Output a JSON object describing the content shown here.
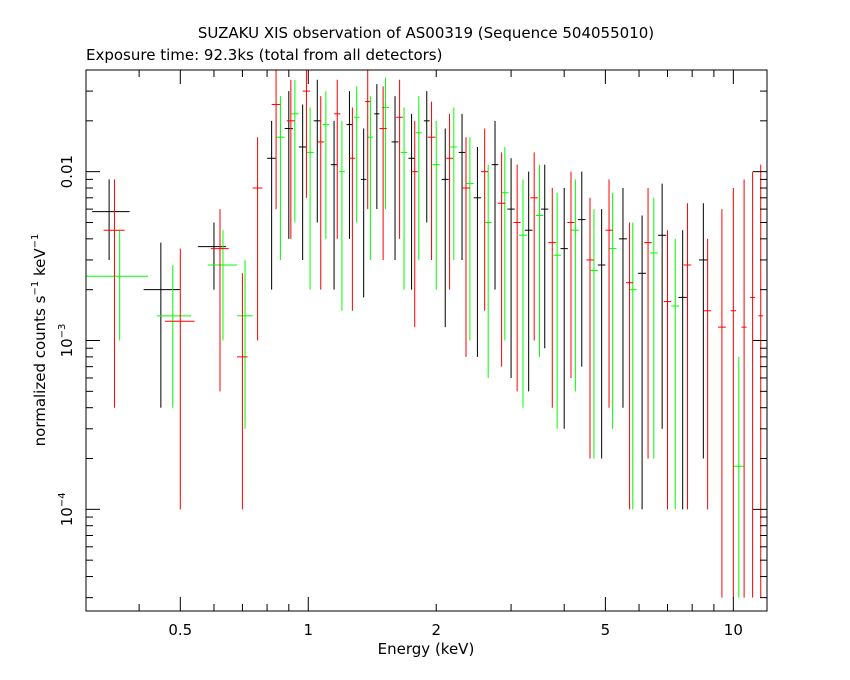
{
  "chart_data": {
    "type": "scatter",
    "title": "SUZAKU XIS observation of AS00319 (Sequence 504055010)",
    "subtitle": "Exposure time: 92.3ks (total from all detectors)",
    "xlabel": "Energy (keV)",
    "ylabel_base": "normalized counts s",
    "ylabel_exp1": "−1",
    "ylabel_mid": " keV",
    "ylabel_exp2": "−1",
    "x_scale": "log",
    "y_scale": "log",
    "xlim": [
      0.3,
      12
    ],
    "ylim": [
      2.5e-05,
      0.04
    ],
    "grid": false,
    "x_ticks": [
      {
        "value": 0.5,
        "label": "0.5"
      },
      {
        "value": 1,
        "label": "1"
      },
      {
        "value": 2,
        "label": "2"
      },
      {
        "value": 5,
        "label": "5"
      },
      {
        "value": 10,
        "label": "10"
      }
    ],
    "y_ticks": [
      {
        "value": 0.01,
        "label": "0.01",
        "sup": ""
      },
      {
        "value": 0.001,
        "label": "10",
        "sup": "−3"
      },
      {
        "value": 0.0001,
        "label": "10",
        "sup": "−4"
      }
    ],
    "series": [
      {
        "color": "#000000",
        "points": [
          {
            "x": 0.34,
            "y": 0.0058,
            "xlo": 0.31,
            "xhi": 0.38,
            "ylo": 0.003,
            "yhi": 0.009
          },
          {
            "x": 0.45,
            "y": 0.002,
            "xlo": 0.41,
            "xhi": 0.5,
            "ylo": 0.0004,
            "yhi": 0.0038
          },
          {
            "x": 0.6,
            "y": 0.0036,
            "xlo": 0.55,
            "xhi": 0.64,
            "ylo": 0.002,
            "yhi": 0.005
          },
          {
            "x": 0.82,
            "y": 0.012,
            "xlo": 0.8,
            "xhi": 0.84,
            "ylo": 0.002,
            "yhi": 0.02
          },
          {
            "x": 0.9,
            "y": 0.018,
            "xlo": 0.88,
            "xhi": 0.92,
            "ylo": 0.004,
            "yhi": 0.03
          },
          {
            "x": 0.97,
            "y": 0.014,
            "xlo": 0.95,
            "xhi": 0.99,
            "ylo": 0.003,
            "yhi": 0.025
          },
          {
            "x": 1.05,
            "y": 0.02,
            "xlo": 1.03,
            "xhi": 1.07,
            "ylo": 0.005,
            "yhi": 0.035
          },
          {
            "x": 1.15,
            "y": 0.011,
            "xlo": 1.13,
            "xhi": 1.17,
            "ylo": 0.002,
            "yhi": 0.02
          },
          {
            "x": 1.25,
            "y": 0.019,
            "xlo": 1.23,
            "xhi": 1.27,
            "ylo": 0.004,
            "yhi": 0.03
          },
          {
            "x": 1.35,
            "y": 0.009,
            "xlo": 1.33,
            "xhi": 1.37,
            "ylo": 0.0018,
            "yhi": 0.018
          },
          {
            "x": 1.45,
            "y": 0.022,
            "xlo": 1.43,
            "xhi": 1.47,
            "ylo": 0.006,
            "yhi": 0.033
          },
          {
            "x": 1.6,
            "y": 0.015,
            "xlo": 1.57,
            "xhi": 1.63,
            "ylo": 0.003,
            "yhi": 0.028
          },
          {
            "x": 1.75,
            "y": 0.012,
            "xlo": 1.72,
            "xhi": 1.78,
            "ylo": 0.002,
            "yhi": 0.022
          },
          {
            "x": 1.9,
            "y": 0.02,
            "xlo": 1.87,
            "xhi": 1.93,
            "ylo": 0.005,
            "yhi": 0.03
          },
          {
            "x": 2.1,
            "y": 0.009,
            "xlo": 2.06,
            "xhi": 2.14,
            "ylo": 0.0012,
            "yhi": 0.018
          },
          {
            "x": 2.3,
            "y": 0.013,
            "xlo": 2.26,
            "xhi": 2.34,
            "ylo": 0.003,
            "yhi": 0.022
          },
          {
            "x": 2.5,
            "y": 0.007,
            "xlo": 2.45,
            "xhi": 2.55,
            "ylo": 0.0008,
            "yhi": 0.014
          },
          {
            "x": 2.75,
            "y": 0.011,
            "xlo": 2.7,
            "xhi": 2.8,
            "ylo": 0.002,
            "yhi": 0.02
          },
          {
            "x": 3.0,
            "y": 0.006,
            "xlo": 2.94,
            "xhi": 3.06,
            "ylo": 0.0006,
            "yhi": 0.012
          },
          {
            "x": 3.3,
            "y": 0.0045,
            "xlo": 3.23,
            "xhi": 3.37,
            "ylo": 0.0005,
            "yhi": 0.01
          },
          {
            "x": 3.6,
            "y": 0.006,
            "xlo": 3.53,
            "xhi": 3.67,
            "ylo": 0.0009,
            "yhi": 0.011
          },
          {
            "x": 4.0,
            "y": 0.0035,
            "xlo": 3.92,
            "xhi": 4.08,
            "ylo": 0.0003,
            "yhi": 0.008
          },
          {
            "x": 4.4,
            "y": 0.0052,
            "xlo": 4.31,
            "xhi": 4.49,
            "ylo": 0.0007,
            "yhi": 0.01
          },
          {
            "x": 4.9,
            "y": 0.0028,
            "xlo": 4.8,
            "xhi": 5.0,
            "ylo": 0.0002,
            "yhi": 0.006
          },
          {
            "x": 5.5,
            "y": 0.004,
            "xlo": 5.38,
            "xhi": 5.62,
            "ylo": 0.0004,
            "yhi": 0.008
          },
          {
            "x": 6.1,
            "y": 0.0025,
            "xlo": 5.97,
            "xhi": 6.23,
            "ylo": 0.0001,
            "yhi": 0.0055
          },
          {
            "x": 6.8,
            "y": 0.0042,
            "xlo": 6.65,
            "xhi": 6.95,
            "ylo": 0.0003,
            "yhi": 0.0085
          },
          {
            "x": 7.6,
            "y": 0.0018,
            "xlo": 7.43,
            "xhi": 7.77,
            "ylo": 0.0001,
            "yhi": 0.0045
          },
          {
            "x": 8.5,
            "y": 0.003,
            "xlo": 8.3,
            "xhi": 8.7,
            "ylo": 0.0002,
            "yhi": 0.0065
          }
        ]
      },
      {
        "color": "#00ff00",
        "points": [
          {
            "x": 0.36,
            "y": 0.0024,
            "xlo": 0.3,
            "xhi": 0.42,
            "ylo": 0.001,
            "yhi": 0.0045
          },
          {
            "x": 0.48,
            "y": 0.0014,
            "xlo": 0.44,
            "xhi": 0.53,
            "ylo": 0.0004,
            "yhi": 0.0028
          },
          {
            "x": 0.63,
            "y": 0.0028,
            "xlo": 0.58,
            "xhi": 0.68,
            "ylo": 0.001,
            "yhi": 0.0045
          },
          {
            "x": 0.71,
            "y": 0.0014,
            "xlo": 0.68,
            "xhi": 0.74,
            "ylo": 0.0003,
            "yhi": 0.003
          },
          {
            "x": 0.86,
            "y": 0.016,
            "xlo": 0.84,
            "xhi": 0.88,
            "ylo": 0.003,
            "yhi": 0.028
          },
          {
            "x": 0.93,
            "y": 0.022,
            "xlo": 0.91,
            "xhi": 0.95,
            "ylo": 0.005,
            "yhi": 0.035
          },
          {
            "x": 1.01,
            "y": 0.013,
            "xlo": 0.99,
            "xhi": 1.03,
            "ylo": 0.002,
            "yhi": 0.024
          },
          {
            "x": 1.1,
            "y": 0.019,
            "xlo": 1.08,
            "xhi": 1.12,
            "ylo": 0.004,
            "yhi": 0.03
          },
          {
            "x": 1.2,
            "y": 0.01,
            "xlo": 1.18,
            "xhi": 1.22,
            "ylo": 0.0015,
            "yhi": 0.02
          },
          {
            "x": 1.3,
            "y": 0.021,
            "xlo": 1.28,
            "xhi": 1.32,
            "ylo": 0.005,
            "yhi": 0.032
          },
          {
            "x": 1.4,
            "y": 0.016,
            "xlo": 1.38,
            "xhi": 1.42,
            "ylo": 0.003,
            "yhi": 0.028
          },
          {
            "x": 1.52,
            "y": 0.024,
            "xlo": 1.49,
            "xhi": 1.55,
            "ylo": 0.006,
            "yhi": 0.036
          },
          {
            "x": 1.68,
            "y": 0.013,
            "xlo": 1.65,
            "xhi": 1.71,
            "ylo": 0.002,
            "yhi": 0.024
          },
          {
            "x": 1.82,
            "y": 0.017,
            "xlo": 1.79,
            "xhi": 1.85,
            "ylo": 0.003,
            "yhi": 0.028
          },
          {
            "x": 2.0,
            "y": 0.011,
            "xlo": 1.96,
            "xhi": 2.04,
            "ylo": 0.002,
            "yhi": 0.02
          },
          {
            "x": 2.2,
            "y": 0.014,
            "xlo": 2.16,
            "xhi": 2.24,
            "ylo": 0.003,
            "yhi": 0.024
          },
          {
            "x": 2.4,
            "y": 0.0085,
            "xlo": 2.35,
            "xhi": 2.45,
            "ylo": 0.001,
            "yhi": 0.016
          },
          {
            "x": 2.65,
            "y": 0.005,
            "xlo": 2.6,
            "xhi": 2.7,
            "ylo": 0.0006,
            "yhi": 0.011
          },
          {
            "x": 2.9,
            "y": 0.0075,
            "xlo": 2.84,
            "xhi": 2.96,
            "ylo": 0.001,
            "yhi": 0.014
          },
          {
            "x": 3.2,
            "y": 0.0042,
            "xlo": 3.13,
            "xhi": 3.27,
            "ylo": 0.0004,
            "yhi": 0.009
          },
          {
            "x": 3.5,
            "y": 0.0055,
            "xlo": 3.43,
            "xhi": 3.57,
            "ylo": 0.0008,
            "yhi": 0.011
          },
          {
            "x": 3.85,
            "y": 0.0032,
            "xlo": 3.77,
            "xhi": 3.93,
            "ylo": 0.0003,
            "yhi": 0.0075
          },
          {
            "x": 4.25,
            "y": 0.0045,
            "xlo": 4.16,
            "xhi": 4.34,
            "ylo": 0.0005,
            "yhi": 0.009
          },
          {
            "x": 4.7,
            "y": 0.0026,
            "xlo": 4.6,
            "xhi": 4.8,
            "ylo": 0.0002,
            "yhi": 0.006
          },
          {
            "x": 5.2,
            "y": 0.0035,
            "xlo": 5.09,
            "xhi": 5.31,
            "ylo": 0.0003,
            "yhi": 0.0075
          },
          {
            "x": 5.8,
            "y": 0.002,
            "xlo": 5.67,
            "xhi": 5.93,
            "ylo": 0.0001,
            "yhi": 0.005
          },
          {
            "x": 6.5,
            "y": 0.0033,
            "xlo": 6.36,
            "xhi": 6.64,
            "ylo": 0.0002,
            "yhi": 0.007
          },
          {
            "x": 7.3,
            "y": 0.0016,
            "xlo": 7.14,
            "xhi": 7.46,
            "ylo": 0.0001,
            "yhi": 0.004
          },
          {
            "x": 10.3,
            "y": 0.00018,
            "xlo": 10.0,
            "xhi": 10.6,
            "ylo": 3e-05,
            "yhi": 0.0008
          }
        ]
      },
      {
        "color": "#ff0000",
        "points": [
          {
            "x": 0.35,
            "y": 0.0045,
            "xlo": 0.33,
            "xhi": 0.37,
            "ylo": 0.0004,
            "yhi": 0.009
          },
          {
            "x": 0.5,
            "y": 0.0013,
            "xlo": 0.46,
            "xhi": 0.54,
            "ylo": 0.0001,
            "yhi": 0.0035
          },
          {
            "x": 0.62,
            "y": 0.0035,
            "xlo": 0.59,
            "xhi": 0.65,
            "ylo": 0.0005,
            "yhi": 0.006
          },
          {
            "x": 0.7,
            "y": 0.0008,
            "xlo": 0.68,
            "xhi": 0.72,
            "ylo": 0.0001,
            "yhi": 0.0025
          },
          {
            "x": 0.76,
            "y": 0.008,
            "xlo": 0.74,
            "xhi": 0.78,
            "ylo": 0.001,
            "yhi": 0.016
          },
          {
            "x": 0.84,
            "y": 0.025,
            "xlo": 0.82,
            "xhi": 0.86,
            "ylo": 0.006,
            "yhi": 0.04
          },
          {
            "x": 0.91,
            "y": 0.02,
            "xlo": 0.89,
            "xhi": 0.93,
            "ylo": 0.004,
            "yhi": 0.035
          },
          {
            "x": 0.99,
            "y": 0.03,
            "xlo": 0.97,
            "xhi": 1.01,
            "ylo": 0.007,
            "yhi": 0.04
          },
          {
            "x": 1.07,
            "y": 0.015,
            "xlo": 1.05,
            "xhi": 1.09,
            "ylo": 0.002,
            "yhi": 0.028
          },
          {
            "x": 1.17,
            "y": 0.022,
            "xlo": 1.15,
            "xhi": 1.19,
            "ylo": 0.004,
            "yhi": 0.035
          },
          {
            "x": 1.27,
            "y": 0.012,
            "xlo": 1.25,
            "xhi": 1.29,
            "ylo": 0.0015,
            "yhi": 0.024
          },
          {
            "x": 1.38,
            "y": 0.026,
            "xlo": 1.36,
            "xhi": 1.4,
            "ylo": 0.006,
            "yhi": 0.04
          },
          {
            "x": 1.5,
            "y": 0.018,
            "xlo": 1.47,
            "xhi": 1.53,
            "ylo": 0.003,
            "yhi": 0.032
          },
          {
            "x": 1.64,
            "y": 0.021,
            "xlo": 1.61,
            "xhi": 1.67,
            "ylo": 0.004,
            "yhi": 0.035
          },
          {
            "x": 1.78,
            "y": 0.01,
            "xlo": 1.75,
            "xhi": 1.81,
            "ylo": 0.0012,
            "yhi": 0.02
          },
          {
            "x": 1.95,
            "y": 0.016,
            "xlo": 1.91,
            "xhi": 1.99,
            "ylo": 0.003,
            "yhi": 0.026
          },
          {
            "x": 2.15,
            "y": 0.012,
            "xlo": 2.11,
            "xhi": 2.19,
            "ylo": 0.002,
            "yhi": 0.022
          },
          {
            "x": 2.35,
            "y": 0.008,
            "xlo": 2.3,
            "xhi": 2.4,
            "ylo": 0.0008,
            "yhi": 0.016
          },
          {
            "x": 2.6,
            "y": 0.01,
            "xlo": 2.55,
            "xhi": 2.65,
            "ylo": 0.0015,
            "yhi": 0.018
          },
          {
            "x": 2.85,
            "y": 0.0065,
            "xlo": 2.79,
            "xhi": 2.91,
            "ylo": 0.0007,
            "yhi": 0.013
          },
          {
            "x": 3.1,
            "y": 0.005,
            "xlo": 3.04,
            "xhi": 3.16,
            "ylo": 0.0005,
            "yhi": 0.011
          },
          {
            "x": 3.4,
            "y": 0.007,
            "xlo": 3.33,
            "xhi": 3.47,
            "ylo": 0.001,
            "yhi": 0.013
          },
          {
            "x": 3.75,
            "y": 0.0038,
            "xlo": 3.67,
            "xhi": 3.83,
            "ylo": 0.0004,
            "yhi": 0.008
          },
          {
            "x": 4.15,
            "y": 0.005,
            "xlo": 4.07,
            "xhi": 4.23,
            "ylo": 0.0006,
            "yhi": 0.01
          },
          {
            "x": 4.6,
            "y": 0.003,
            "xlo": 4.51,
            "xhi": 4.69,
            "ylo": 0.0002,
            "yhi": 0.007
          },
          {
            "x": 5.1,
            "y": 0.0045,
            "xlo": 5.0,
            "xhi": 5.2,
            "ylo": 0.0004,
            "yhi": 0.009
          },
          {
            "x": 5.7,
            "y": 0.0022,
            "xlo": 5.59,
            "xhi": 5.81,
            "ylo": 0.0001,
            "yhi": 0.005
          },
          {
            "x": 6.3,
            "y": 0.0038,
            "xlo": 6.17,
            "xhi": 6.43,
            "ylo": 0.0002,
            "yhi": 0.008
          },
          {
            "x": 7.0,
            "y": 0.0017,
            "xlo": 6.86,
            "xhi": 7.14,
            "ylo": 0.0001,
            "yhi": 0.0045
          },
          {
            "x": 7.8,
            "y": 0.0028,
            "xlo": 7.64,
            "xhi": 7.96,
            "ylo": 0.0001,
            "yhi": 0.0065
          },
          {
            "x": 8.7,
            "y": 0.0015,
            "xlo": 8.53,
            "xhi": 8.87,
            "ylo": 0.0001,
            "yhi": 0.004
          },
          {
            "x": 9.4,
            "y": 0.0012,
            "xlo": 9.2,
            "xhi": 9.6,
            "ylo": 3e-05,
            "yhi": 0.006
          },
          {
            "x": 10.0,
            "y": 0.0015,
            "xlo": 9.85,
            "xhi": 10.15,
            "ylo": 3e-05,
            "yhi": 0.008
          },
          {
            "x": 10.6,
            "y": 0.0012,
            "xlo": 10.45,
            "xhi": 10.75,
            "ylo": 3e-05,
            "yhi": 0.009
          },
          {
            "x": 11.1,
            "y": 0.0018,
            "xlo": 10.95,
            "xhi": 11.25,
            "ylo": 3e-05,
            "yhi": 0.01
          },
          {
            "x": 11.6,
            "y": 0.0014,
            "xlo": 11.45,
            "xhi": 11.75,
            "ylo": 3e-05,
            "yhi": 0.011
          }
        ]
      }
    ]
  }
}
